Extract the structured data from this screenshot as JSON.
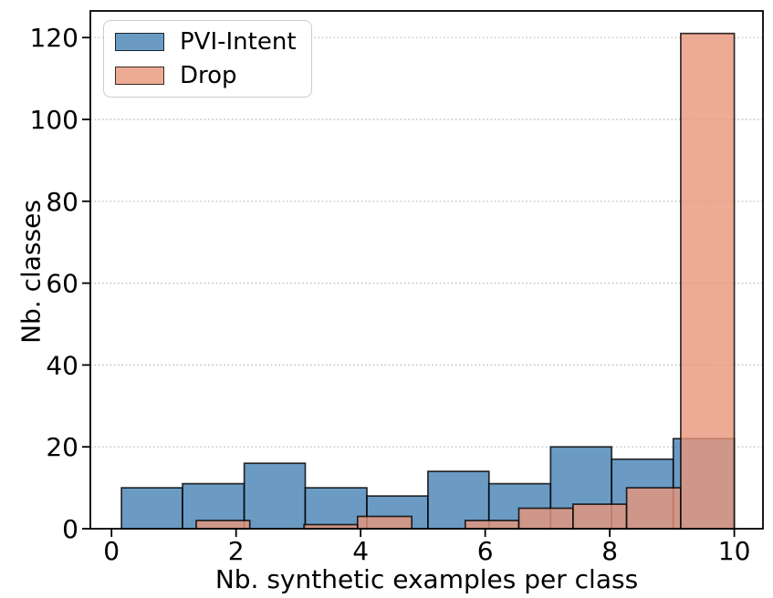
{
  "chart_data": {
    "type": "bar",
    "subtype": "overlaid-histograms",
    "title": "",
    "xlabel": "Nb. synthetic examples per class",
    "ylabel": "Nb. classes",
    "xlim": [
      -0.34,
      10.46
    ],
    "ylim": [
      0,
      126.5
    ],
    "xticks": [
      0,
      2,
      4,
      6,
      8,
      10
    ],
    "yticks": [
      0,
      20,
      40,
      60,
      80,
      100,
      120
    ],
    "grid": {
      "axis": "y",
      "linestyle": "dotted",
      "color": "#b9b9b9"
    },
    "bar_alpha": 0.8,
    "edge_color": "#000000",
    "frame_color": "#000000",
    "legend": {
      "position": "upper-left",
      "items": [
        "PVI-Intent",
        "Drop"
      ]
    },
    "series": [
      {
        "name": "PVI-Intent",
        "color": "#4682B4",
        "bin_edges": [
          0.16,
          1.14,
          2.13,
          3.11,
          4.1,
          5.08,
          6.06,
          7.05,
          8.03,
          9.02,
          10.0
        ],
        "counts": [
          10,
          11,
          16,
          10,
          8,
          14,
          11,
          20,
          17,
          22
        ]
      },
      {
        "name": "Drop",
        "color": "#E9967A",
        "bin_edges": [
          1.36,
          2.22,
          3.09,
          3.95,
          4.82,
          5.68,
          6.54,
          7.41,
          8.27,
          9.14,
          10.0
        ],
        "counts": [
          2,
          0,
          1,
          3,
          0,
          2,
          5,
          6,
          10,
          121
        ]
      }
    ]
  }
}
